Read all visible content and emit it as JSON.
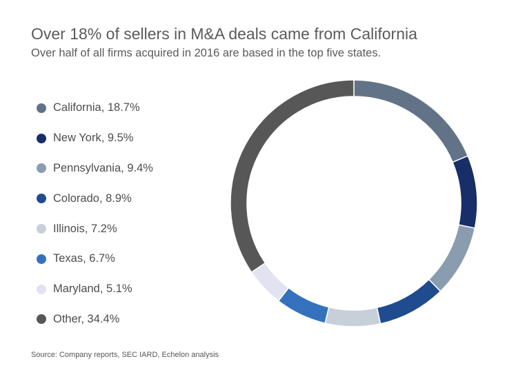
{
  "title": "Over 18% of sellers in M&A deals came from California",
  "subtitle": "Over half of all firms acquired in 2016 are based in the top five states.",
  "source": "Source: Company reports, SEC IARD, Echelon analysis",
  "chart_data": {
    "type": "pie",
    "variant": "donut",
    "legend_placement": "left",
    "slices": [
      {
        "label": "California, 18.7%",
        "name": "California",
        "value": 18.7,
        "color": "#637387"
      },
      {
        "label": "New York, 9.5%",
        "name": "New York",
        "value": 9.5,
        "color": "#182e68"
      },
      {
        "label": "Pennsylvania, 9.4%",
        "name": "Pennsylvania",
        "value": 9.4,
        "color": "#8a9db0"
      },
      {
        "label": "Colorado, 8.9%",
        "name": "Colorado",
        "value": 8.9,
        "color": "#1f4b8f"
      },
      {
        "label": "Illinois, 7.2%",
        "name": "Illinois",
        "value": 7.2,
        "color": "#c7d0d8"
      },
      {
        "label": "Texas, 6.7%",
        "name": "Texas",
        "value": 6.7,
        "color": "#3572bd"
      },
      {
        "label": "Maryland, 5.1%",
        "name": "Maryland",
        "value": 5.1,
        "color": "#e2e2f1"
      },
      {
        "label": "Other, 34.4%",
        "name": "Other",
        "value": 34.4,
        "color": "#575757"
      }
    ]
  }
}
